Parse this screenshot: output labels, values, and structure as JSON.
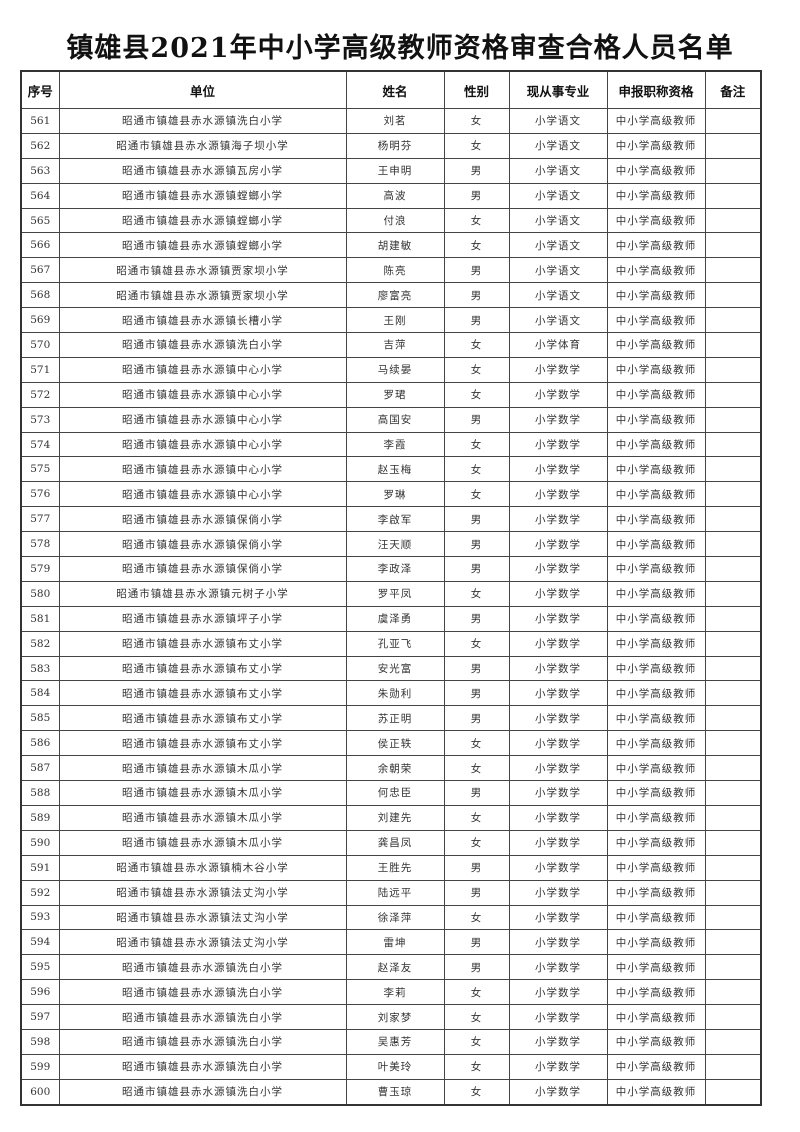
{
  "title": "镇雄县2021年中小学高级教师资格审查合格人员名单",
  "headers": [
    "序号",
    "单位",
    "姓名",
    "性别",
    "现从事专业",
    "申报职称资格",
    "备注"
  ],
  "rows": [
    [
      "561",
      "昭通市镇雄县赤水源镇洗白小学",
      "刘茗",
      "女",
      "小学语文",
      "中小学高级教师",
      ""
    ],
    [
      "562",
      "昭通市镇雄县赤水源镇海子坝小学",
      "杨明芬",
      "女",
      "小学语文",
      "中小学高级教师",
      ""
    ],
    [
      "563",
      "昭通市镇雄县赤水源镇瓦房小学",
      "王申明",
      "男",
      "小学语文",
      "中小学高级教师",
      ""
    ],
    [
      "564",
      "昭通市镇雄县赤水源镇螳螂小学",
      "高波",
      "男",
      "小学语文",
      "中小学高级教师",
      ""
    ],
    [
      "565",
      "昭通市镇雄县赤水源镇螳螂小学",
      "付浪",
      "女",
      "小学语文",
      "中小学高级教师",
      ""
    ],
    [
      "566",
      "昭通市镇雄县赤水源镇螳螂小学",
      "胡建敏",
      "女",
      "小学语文",
      "中小学高级教师",
      ""
    ],
    [
      "567",
      "昭通市镇雄县赤水源镇贾家坝小学",
      "陈亮",
      "男",
      "小学语文",
      "中小学高级教师",
      ""
    ],
    [
      "568",
      "昭通市镇雄县赤水源镇贾家坝小学",
      "廖富亮",
      "男",
      "小学语文",
      "中小学高级教师",
      ""
    ],
    [
      "569",
      "昭通市镇雄县赤水源镇长槽小学",
      "王刚",
      "男",
      "小学语文",
      "中小学高级教师",
      ""
    ],
    [
      "570",
      "昭通市镇雄县赤水源镇洗白小学",
      "吉萍",
      "女",
      "小学体育",
      "中小学高级教师",
      ""
    ],
    [
      "571",
      "昭通市镇雄县赤水源镇中心小学",
      "马续晏",
      "女",
      "小学数学",
      "中小学高级教师",
      ""
    ],
    [
      "572",
      "昭通市镇雄县赤水源镇中心小学",
      "罗珺",
      "女",
      "小学数学",
      "中小学高级教师",
      ""
    ],
    [
      "573",
      "昭通市镇雄县赤水源镇中心小学",
      "高国安",
      "男",
      "小学数学",
      "中小学高级教师",
      ""
    ],
    [
      "574",
      "昭通市镇雄县赤水源镇中心小学",
      "李霞",
      "女",
      "小学数学",
      "中小学高级教师",
      ""
    ],
    [
      "575",
      "昭通市镇雄县赤水源镇中心小学",
      "赵玉梅",
      "女",
      "小学数学",
      "中小学高级教师",
      ""
    ],
    [
      "576",
      "昭通市镇雄县赤水源镇中心小学",
      "罗琳",
      "女",
      "小学数学",
      "中小学高级教师",
      ""
    ],
    [
      "577",
      "昭通市镇雄县赤水源镇保倘小学",
      "李啟军",
      "男",
      "小学数学",
      "中小学高级教师",
      ""
    ],
    [
      "578",
      "昭通市镇雄县赤水源镇保倘小学",
      "汪天顺",
      "男",
      "小学数学",
      "中小学高级教师",
      ""
    ],
    [
      "579",
      "昭通市镇雄县赤水源镇保倘小学",
      "李政泽",
      "男",
      "小学数学",
      "中小学高级教师",
      ""
    ],
    [
      "580",
      "昭通市镇雄县赤水源镇元树子小学",
      "罗平凤",
      "女",
      "小学数学",
      "中小学高级教师",
      ""
    ],
    [
      "581",
      "昭通市镇雄县赤水源镇坪子小学",
      "虞泽勇",
      "男",
      "小学数学",
      "中小学高级教师",
      ""
    ],
    [
      "582",
      "昭通市镇雄县赤水源镇布丈小学",
      "孔亚飞",
      "女",
      "小学数学",
      "中小学高级教师",
      ""
    ],
    [
      "583",
      "昭通市镇雄县赤水源镇布丈小学",
      "安光富",
      "男",
      "小学数学",
      "中小学高级教师",
      ""
    ],
    [
      "584",
      "昭通市镇雄县赤水源镇布丈小学",
      "朱勋利",
      "男",
      "小学数学",
      "中小学高级教师",
      ""
    ],
    [
      "585",
      "昭通市镇雄县赤水源镇布丈小学",
      "苏正明",
      "男",
      "小学数学",
      "中小学高级教师",
      ""
    ],
    [
      "586",
      "昭通市镇雄县赤水源镇布丈小学",
      "侯正轶",
      "女",
      "小学数学",
      "中小学高级教师",
      ""
    ],
    [
      "587",
      "昭通市镇雄县赤水源镇木瓜小学",
      "余朝荣",
      "女",
      "小学数学",
      "中小学高级教师",
      ""
    ],
    [
      "588",
      "昭通市镇雄县赤水源镇木瓜小学",
      "何忠臣",
      "男",
      "小学数学",
      "中小学高级教师",
      ""
    ],
    [
      "589",
      "昭通市镇雄县赤水源镇木瓜小学",
      "刘建先",
      "女",
      "小学数学",
      "中小学高级教师",
      ""
    ],
    [
      "590",
      "昭通市镇雄县赤水源镇木瓜小学",
      "龚昌凤",
      "女",
      "小学数学",
      "中小学高级教师",
      ""
    ],
    [
      "591",
      "昭通市镇雄县赤水源镇楠木谷小学",
      "王胜先",
      "男",
      "小学数学",
      "中小学高级教师",
      ""
    ],
    [
      "592",
      "昭通市镇雄县赤水源镇法丈沟小学",
      "陆远平",
      "男",
      "小学数学",
      "中小学高级教师",
      ""
    ],
    [
      "593",
      "昭通市镇雄县赤水源镇法丈沟小学",
      "徐泽萍",
      "女",
      "小学数学",
      "中小学高级教师",
      ""
    ],
    [
      "594",
      "昭通市镇雄县赤水源镇法丈沟小学",
      "雷坤",
      "男",
      "小学数学",
      "中小学高级教师",
      ""
    ],
    [
      "595",
      "昭通市镇雄县赤水源镇洗白小学",
      "赵泽友",
      "男",
      "小学数学",
      "中小学高级教师",
      ""
    ],
    [
      "596",
      "昭通市镇雄县赤水源镇洗白小学",
      "李莉",
      "女",
      "小学数学",
      "中小学高级教师",
      ""
    ],
    [
      "597",
      "昭通市镇雄县赤水源镇洗白小学",
      "刘家梦",
      "女",
      "小学数学",
      "中小学高级教师",
      ""
    ],
    [
      "598",
      "昭通市镇雄县赤水源镇洗白小学",
      "吴惠芳",
      "女",
      "小学数学",
      "中小学高级教师",
      ""
    ],
    [
      "599",
      "昭通市镇雄县赤水源镇洗白小学",
      "叶美玲",
      "女",
      "小学数学",
      "中小学高级教师",
      ""
    ],
    [
      "600",
      "昭通市镇雄县赤水源镇洗白小学",
      "曹玉琼",
      "女",
      "小学数学",
      "中小学高级教师",
      ""
    ]
  ]
}
